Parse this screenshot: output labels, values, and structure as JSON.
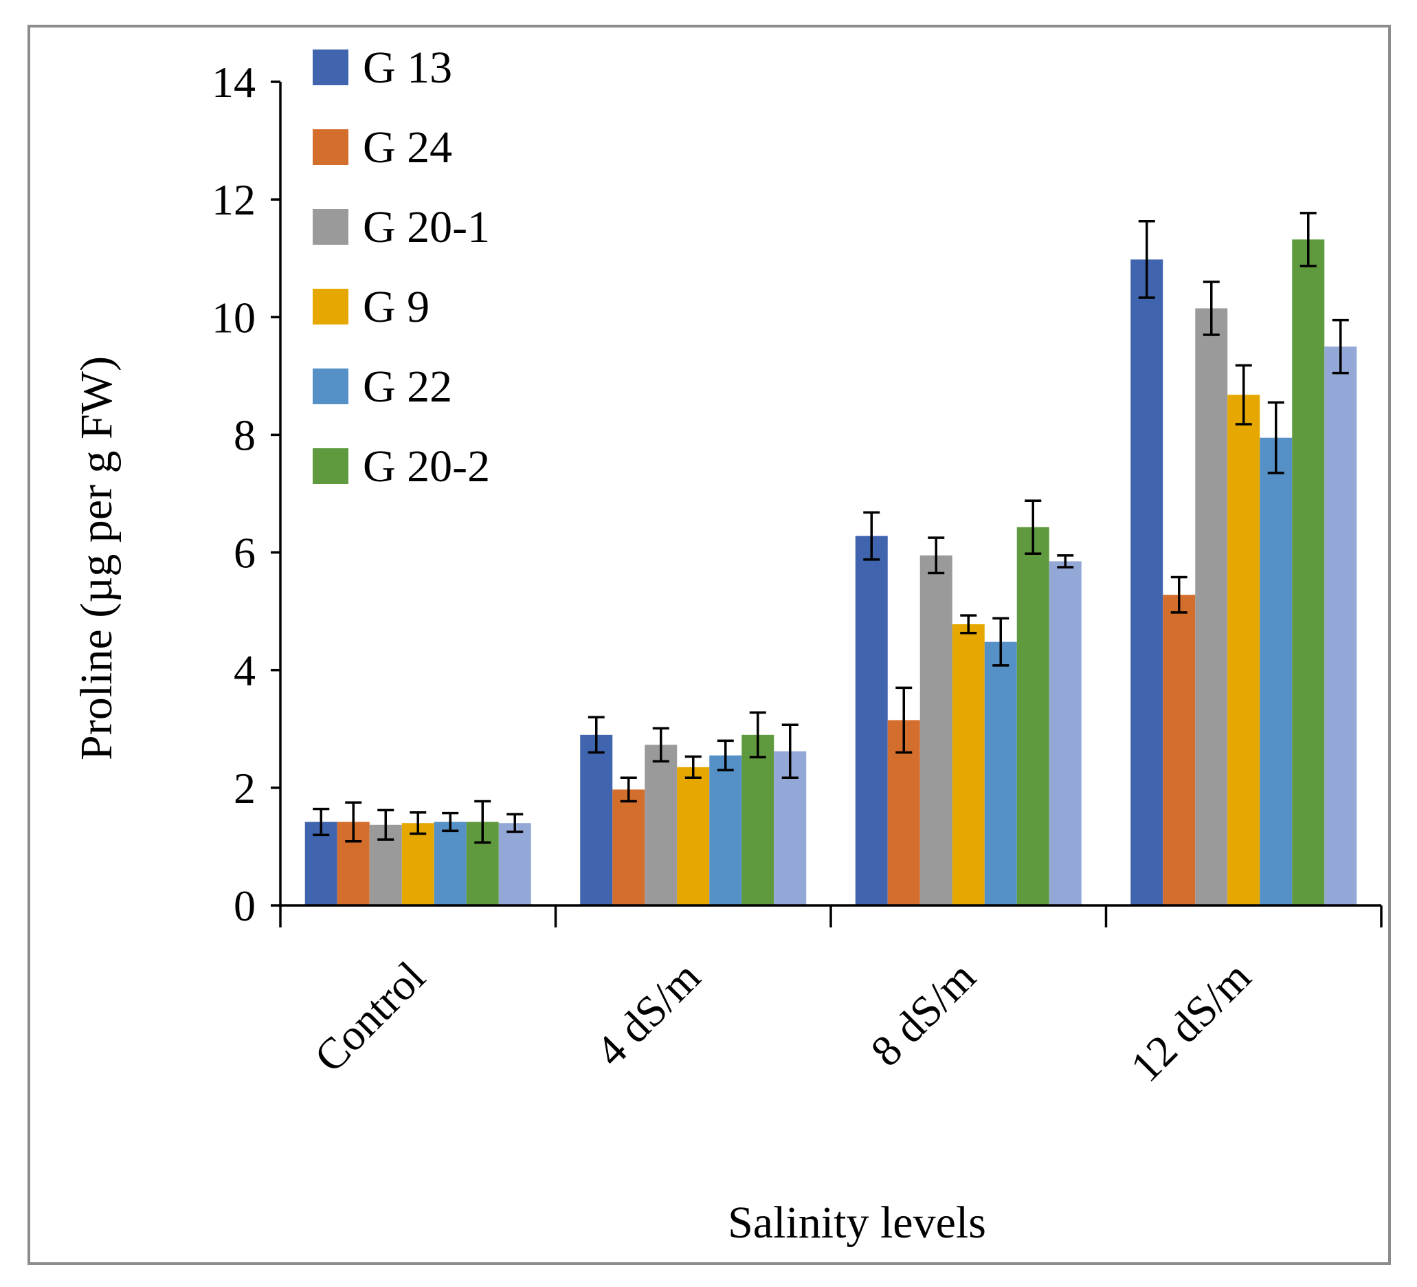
{
  "chart_data": {
    "type": "bar",
    "title": "",
    "xlabel": "Salinity levels",
    "ylabel": "Proline (µg per g FW)",
    "ylim": [
      0,
      14
    ],
    "yticks": [
      0,
      2,
      4,
      6,
      8,
      10,
      12,
      14
    ],
    "grid": false,
    "legend_position": "top-left",
    "categories": [
      "Control",
      "4 dS/m",
      "8 dS/m",
      "12 dS/m"
    ],
    "series": [
      {
        "name": "G 13",
        "color": "#4064ae",
        "values": [
          1.42,
          2.9,
          6.28,
          10.98
        ],
        "errors": [
          0.22,
          0.3,
          0.4,
          0.65
        ]
      },
      {
        "name": "G 24",
        "color": "#d46e2c",
        "values": [
          1.42,
          1.97,
          3.15,
          5.28
        ],
        "errors": [
          0.33,
          0.2,
          0.55,
          0.3
        ]
      },
      {
        "name": "G 20-1",
        "color": "#9a9a9a",
        "values": [
          1.37,
          2.73,
          5.95,
          10.15
        ],
        "errors": [
          0.25,
          0.28,
          0.3,
          0.45
        ]
      },
      {
        "name": "G 9",
        "color": "#e6a800",
        "values": [
          1.4,
          2.35,
          4.78,
          8.68
        ],
        "errors": [
          0.18,
          0.18,
          0.15,
          0.5
        ]
      },
      {
        "name": "G 22",
        "color": "#5590c6",
        "values": [
          1.42,
          2.55,
          4.48,
          7.95
        ],
        "errors": [
          0.15,
          0.25,
          0.4,
          0.6
        ]
      },
      {
        "name": "G 20-2",
        "color": "#5f9a3e",
        "values": [
          1.42,
          2.9,
          6.43,
          11.32
        ],
        "errors": [
          0.35,
          0.38,
          0.45,
          0.45
        ]
      },
      {
        "name": "",
        "color": "#94a8d8",
        "values": [
          1.4,
          2.62,
          5.85,
          9.5
        ],
        "errors": [
          0.15,
          0.45,
          0.1,
          0.45
        ]
      }
    ]
  }
}
